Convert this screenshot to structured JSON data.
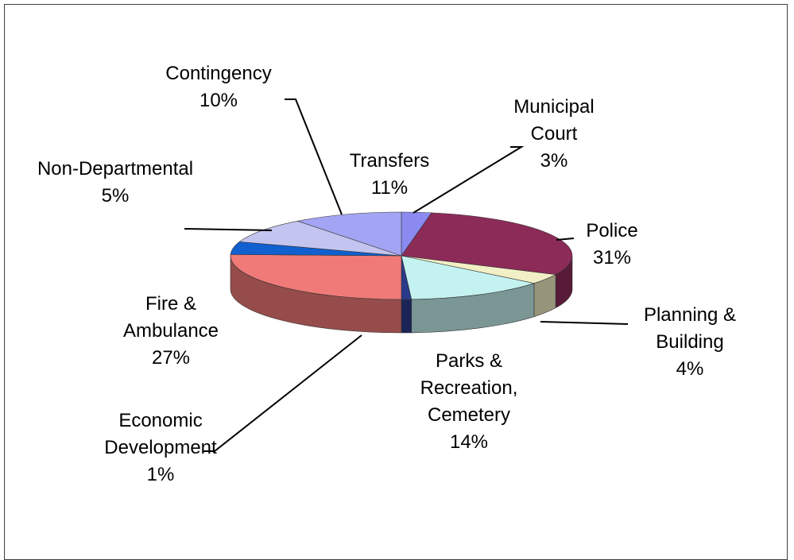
{
  "chart_data": {
    "type": "pie3d",
    "categories": [
      "Municipal Court",
      "Police",
      "Planning & Building",
      "Parks & Recreation, Cemetery",
      "Economic Development",
      "Fire & Ambulance",
      "Non-Departmental",
      "Contingency",
      "Transfers"
    ],
    "values": [
      3,
      31,
      4,
      14,
      1,
      27,
      5,
      10,
      11
    ],
    "value_labels": [
      "3%",
      "31%",
      "4%",
      "14%",
      "1%",
      "27%",
      "5%",
      "10%",
      "11%"
    ],
    "colors": [
      "#8a8af0",
      "#8c2b58",
      "#f2efc6",
      "#c4f2f0",
      "#2a3a8a",
      "#f07a78",
      "#1060d0",
      "#c4c4f0",
      "#a4a4f4"
    ]
  }
}
